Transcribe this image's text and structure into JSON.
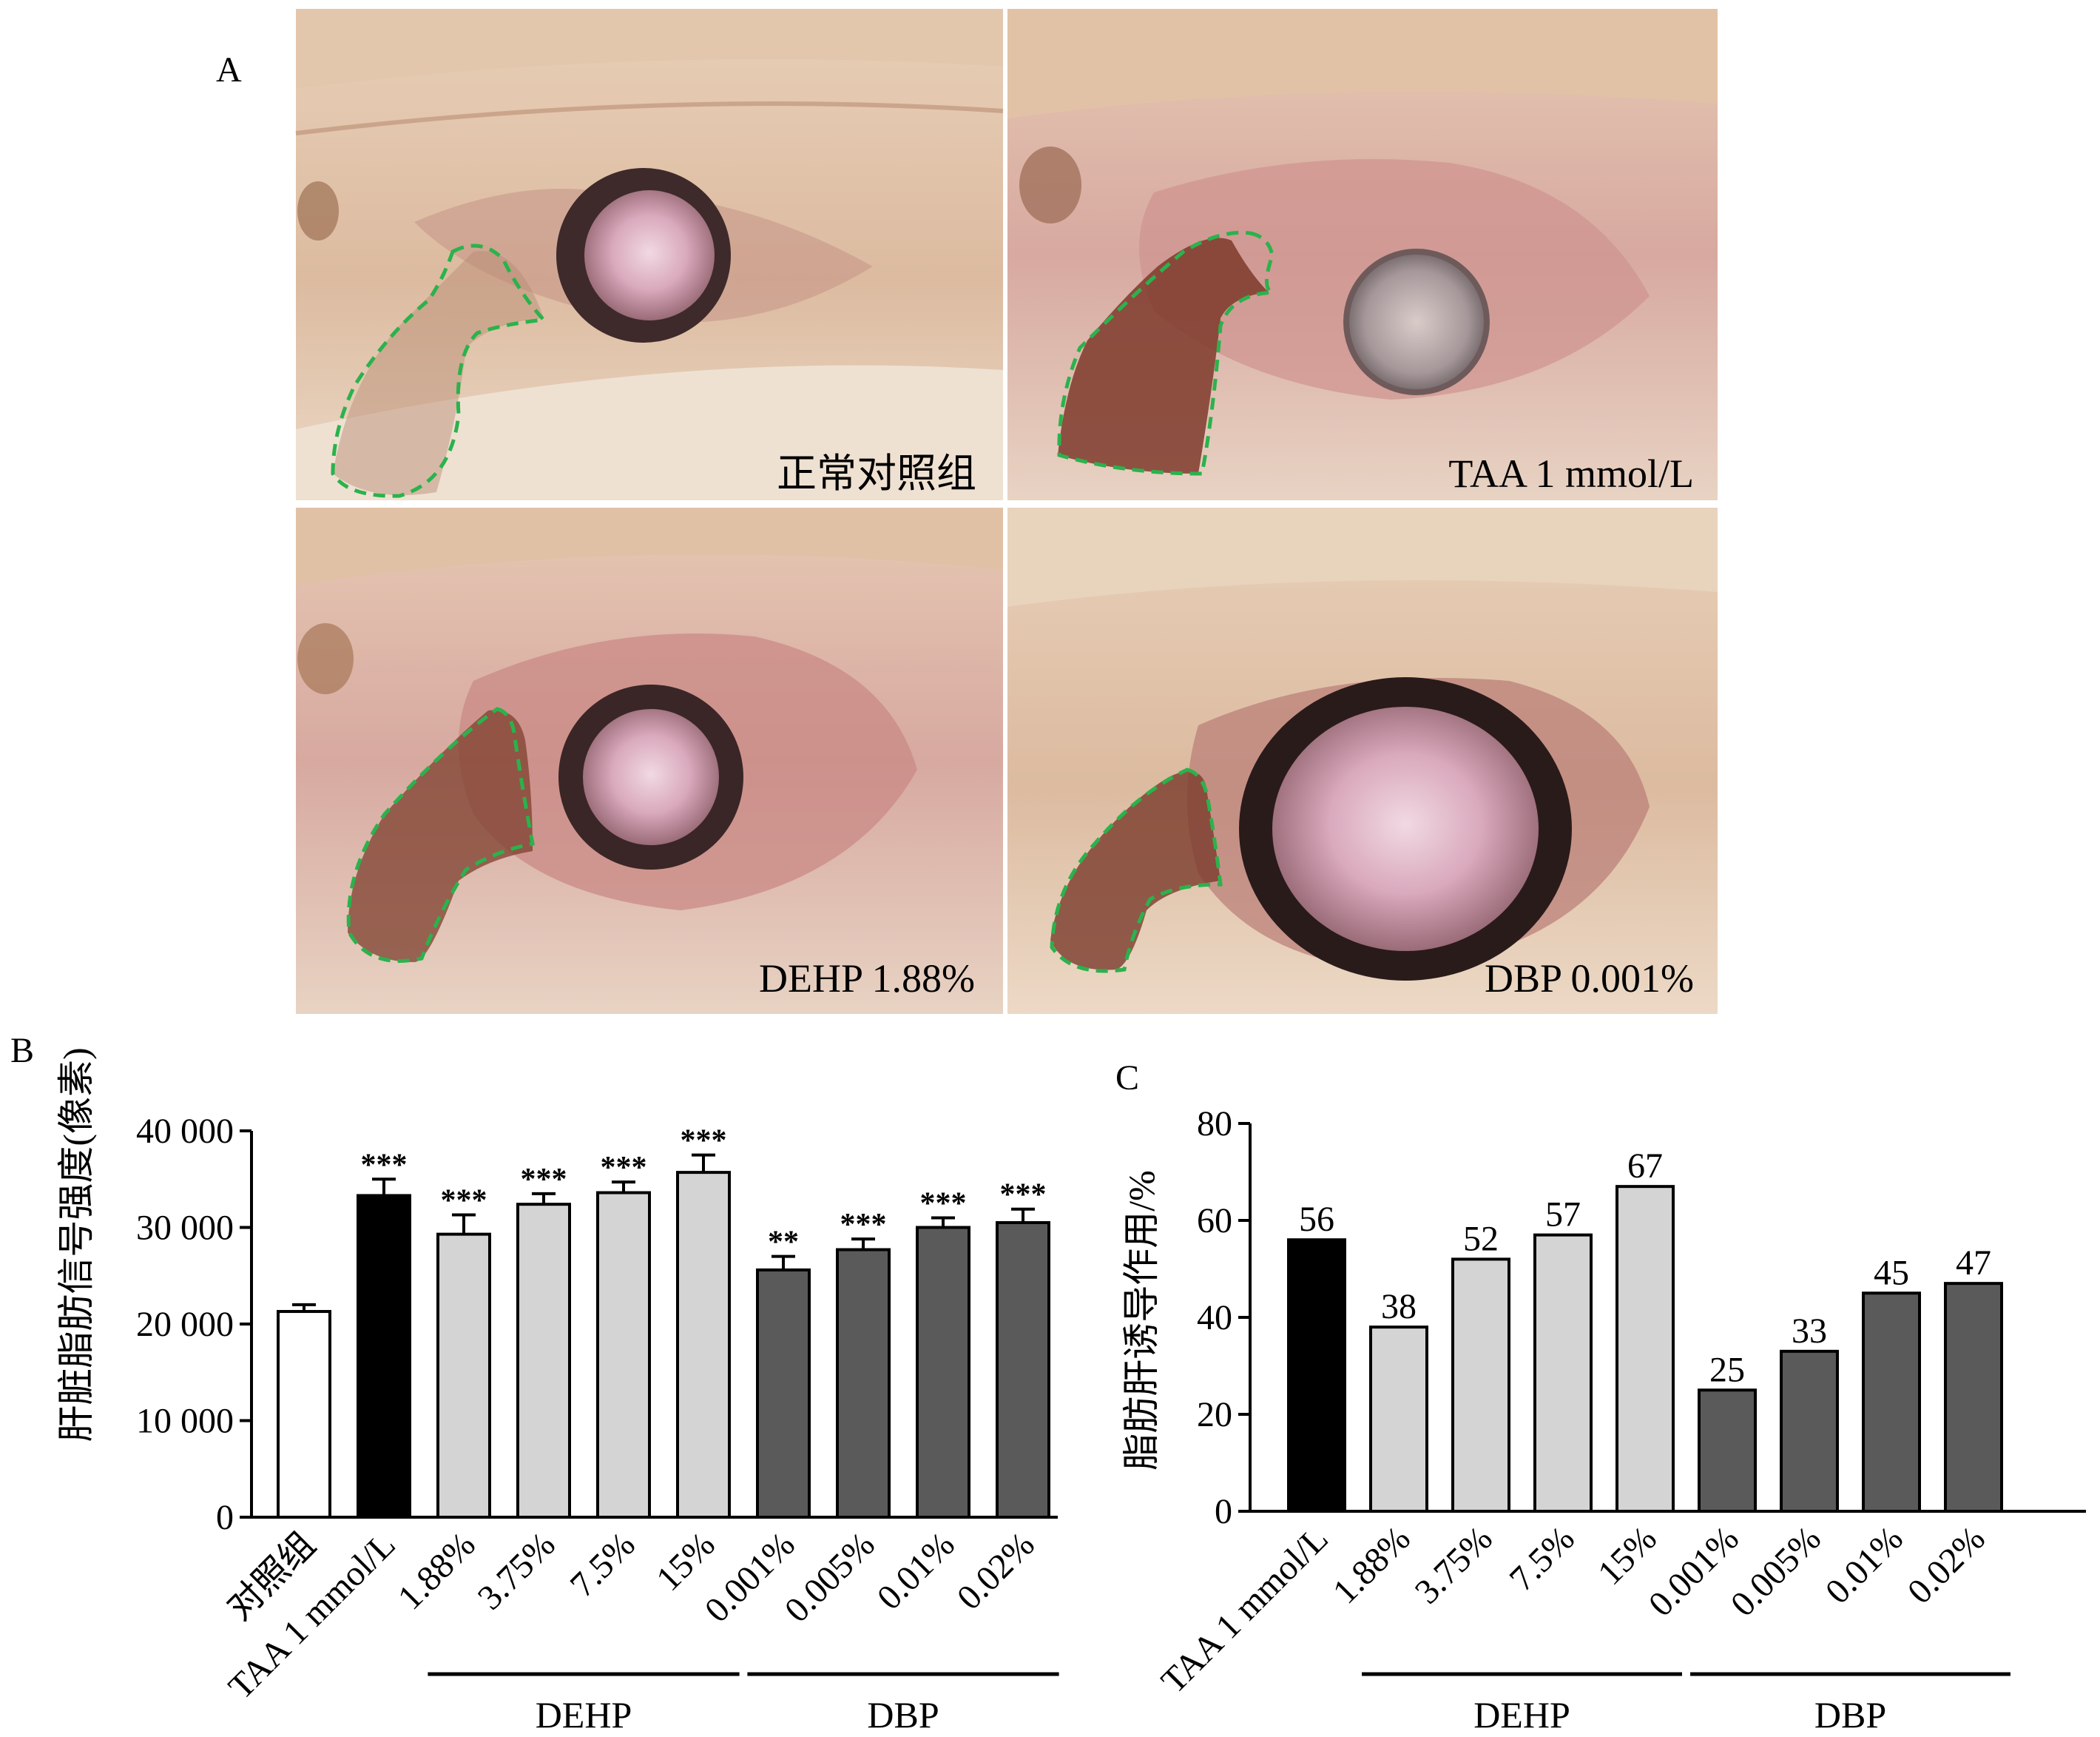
{
  "panel_a": {
    "letter": "A",
    "images": [
      {
        "label": "正常对照组"
      },
      {
        "label": "TAA 1 mmol/L"
      },
      {
        "label": "DEHP 1.88%"
      },
      {
        "label": "DBP 0.001%"
      }
    ]
  },
  "panel_b": {
    "letter": "B",
    "ylabel": "肝脏脂肪信号强度(像素)",
    "yticks": [
      "0",
      "10 000",
      "20 000",
      "30 000",
      "40 000"
    ]
  },
  "panel_c": {
    "letter": "C",
    "ylabel": "脂肪肝诱导作用/%",
    "yticks": [
      "0",
      "20",
      "40",
      "60",
      "80"
    ]
  },
  "colors": {
    "control": "#ffffff",
    "taa": "#000000",
    "dehp": "#d4d4d4",
    "dbp": "#5a5a5a",
    "outline": "#2bb24c"
  },
  "chart_data": [
    {
      "type": "bar",
      "panel": "B",
      "ylabel": "肝脏脂肪信号强度(像素)",
      "ylim": [
        0,
        40000
      ],
      "categories": [
        "对照组",
        "TAA 1 mmol/L",
        "1.88%",
        "3.75%",
        "7.5%",
        "15%",
        "0.001%",
        "0.005%",
        "0.01%",
        "0.02%"
      ],
      "groups": [
        "control",
        "taa",
        "dehp",
        "dehp",
        "dehp",
        "dehp",
        "dbp",
        "dbp",
        "dbp",
        "dbp"
      ],
      "values": [
        21300,
        33300,
        29300,
        32400,
        33600,
        35700,
        25600,
        27700,
        30000,
        30500
      ],
      "errors": [
        700,
        1700,
        2000,
        1100,
        1100,
        1800,
        1400,
        1100,
        1000,
        1400
      ],
      "significance": [
        "",
        "***",
        "***",
        "***",
        "***",
        "***",
        "**",
        "***",
        "***",
        "***"
      ],
      "brackets": [
        {
          "label": "DEHP",
          "from": 2,
          "to": 5
        },
        {
          "label": "DBP",
          "from": 6,
          "to": 9
        }
      ]
    },
    {
      "type": "bar",
      "panel": "C",
      "ylabel": "脂肪肝诱导作用/%",
      "ylim": [
        0,
        80
      ],
      "categories": [
        "TAA 1 mmol/L",
        "1.88%",
        "3.75%",
        "7.5%",
        "15%",
        "0.001%",
        "0.005%",
        "0.01%",
        "0.02%"
      ],
      "groups": [
        "taa",
        "dehp",
        "dehp",
        "dehp",
        "dehp",
        "dbp",
        "dbp",
        "dbp",
        "dbp"
      ],
      "values": [
        56,
        38,
        52,
        57,
        67,
        25,
        33,
        45,
        47
      ],
      "value_labels": [
        "56",
        "38",
        "52",
        "57",
        "67",
        "25",
        "33",
        "45",
        "47"
      ],
      "brackets": [
        {
          "label": "DEHP",
          "from": 1,
          "to": 4
        },
        {
          "label": "DBP",
          "from": 5,
          "to": 8
        }
      ]
    }
  ]
}
